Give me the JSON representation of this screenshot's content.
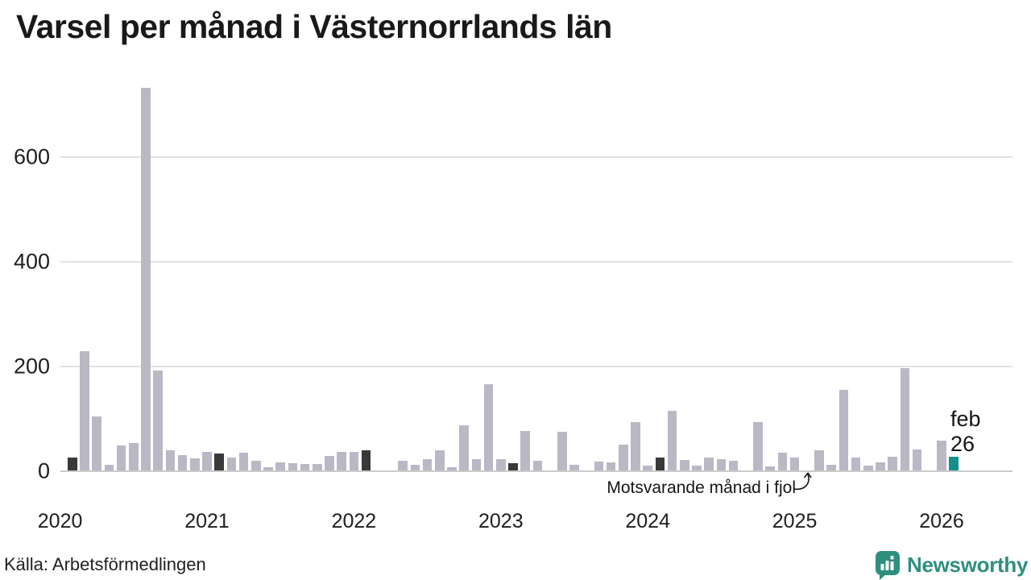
{
  "title": "Varsel per månad i Västernorrlands län",
  "source": "Källa: Arbetsförmedlingen",
  "brand": {
    "name": "Newsworthy",
    "color": "#2e8f7f"
  },
  "annotation": {
    "text": "Motsvarande månad i fjol",
    "points_to": "2025-02"
  },
  "end_label": {
    "month": "feb",
    "value": "26"
  },
  "colors": {
    "bar": "#bab8c5",
    "highlight": "#3a383a",
    "accent": "#11918a",
    "grid": "#e2e2e2",
    "zero_line": "#cbcbcb",
    "text": "#1f1f1f"
  },
  "chart_data": {
    "type": "bar",
    "title": "Varsel per månad i Västernorrlands län",
    "xlabel": "",
    "ylabel": "",
    "ylim": [
      0,
      750
    ],
    "yticks": [
      0,
      200,
      400,
      600
    ],
    "grid": true,
    "legend": "none",
    "months": [
      "2020-02",
      "2020-03",
      "2020-04",
      "2020-05",
      "2020-06",
      "2020-07",
      "2020-08",
      "2020-09",
      "2020-10",
      "2020-11",
      "2020-12",
      "2021-01",
      "2021-02",
      "2021-03",
      "2021-04",
      "2021-05",
      "2021-06",
      "2021-07",
      "2021-08",
      "2021-09",
      "2021-10",
      "2021-11",
      "2021-12",
      "2022-01",
      "2022-02",
      "2022-03",
      "2022-04",
      "2022-05",
      "2022-06",
      "2022-07",
      "2022-08",
      "2022-09",
      "2022-10",
      "2022-11",
      "2022-12",
      "2023-01",
      "2023-02",
      "2023-03",
      "2023-04",
      "2023-05",
      "2023-06",
      "2023-07",
      "2023-08",
      "2023-09",
      "2023-10",
      "2023-11",
      "2023-12",
      "2024-01",
      "2024-02",
      "2024-03",
      "2024-04",
      "2024-05",
      "2024-06",
      "2024-07",
      "2024-08",
      "2024-09",
      "2024-10",
      "2024-11",
      "2024-12",
      "2025-01",
      "2025-02",
      "2025-03",
      "2025-04",
      "2025-05",
      "2025-06",
      "2025-07",
      "2025-08",
      "2025-09",
      "2025-10",
      "2025-11",
      "2025-12",
      "2026-01",
      "2026-02"
    ],
    "values": [
      25,
      227,
      103,
      11,
      48,
      52,
      731,
      191,
      39,
      29,
      23,
      35,
      33,
      25,
      34,
      19,
      6,
      15,
      14,
      13,
      13,
      28,
      35,
      35,
      39,
      0,
      0,
      19,
      11,
      22,
      38,
      7,
      87,
      21,
      164,
      21,
      14,
      75,
      18,
      0,
      74,
      11,
      0,
      17,
      15,
      50,
      92,
      10,
      25,
      114,
      20,
      10,
      24,
      22,
      18,
      0,
      92,
      8,
      34,
      24,
      0,
      38,
      11,
      154,
      24,
      10,
      15,
      26,
      195,
      40,
      0,
      57,
      26
    ],
    "highlight_indices": [
      0,
      12,
      24,
      36,
      48,
      60
    ],
    "accent_index": 72,
    "x_years": [
      {
        "label": "2020",
        "index": -1
      },
      {
        "label": "2021",
        "index": 11
      },
      {
        "label": "2022",
        "index": 23
      },
      {
        "label": "2023",
        "index": 35
      },
      {
        "label": "2024",
        "index": 47
      },
      {
        "label": "2025",
        "index": 59
      },
      {
        "label": "2026",
        "index": 71
      }
    ]
  }
}
